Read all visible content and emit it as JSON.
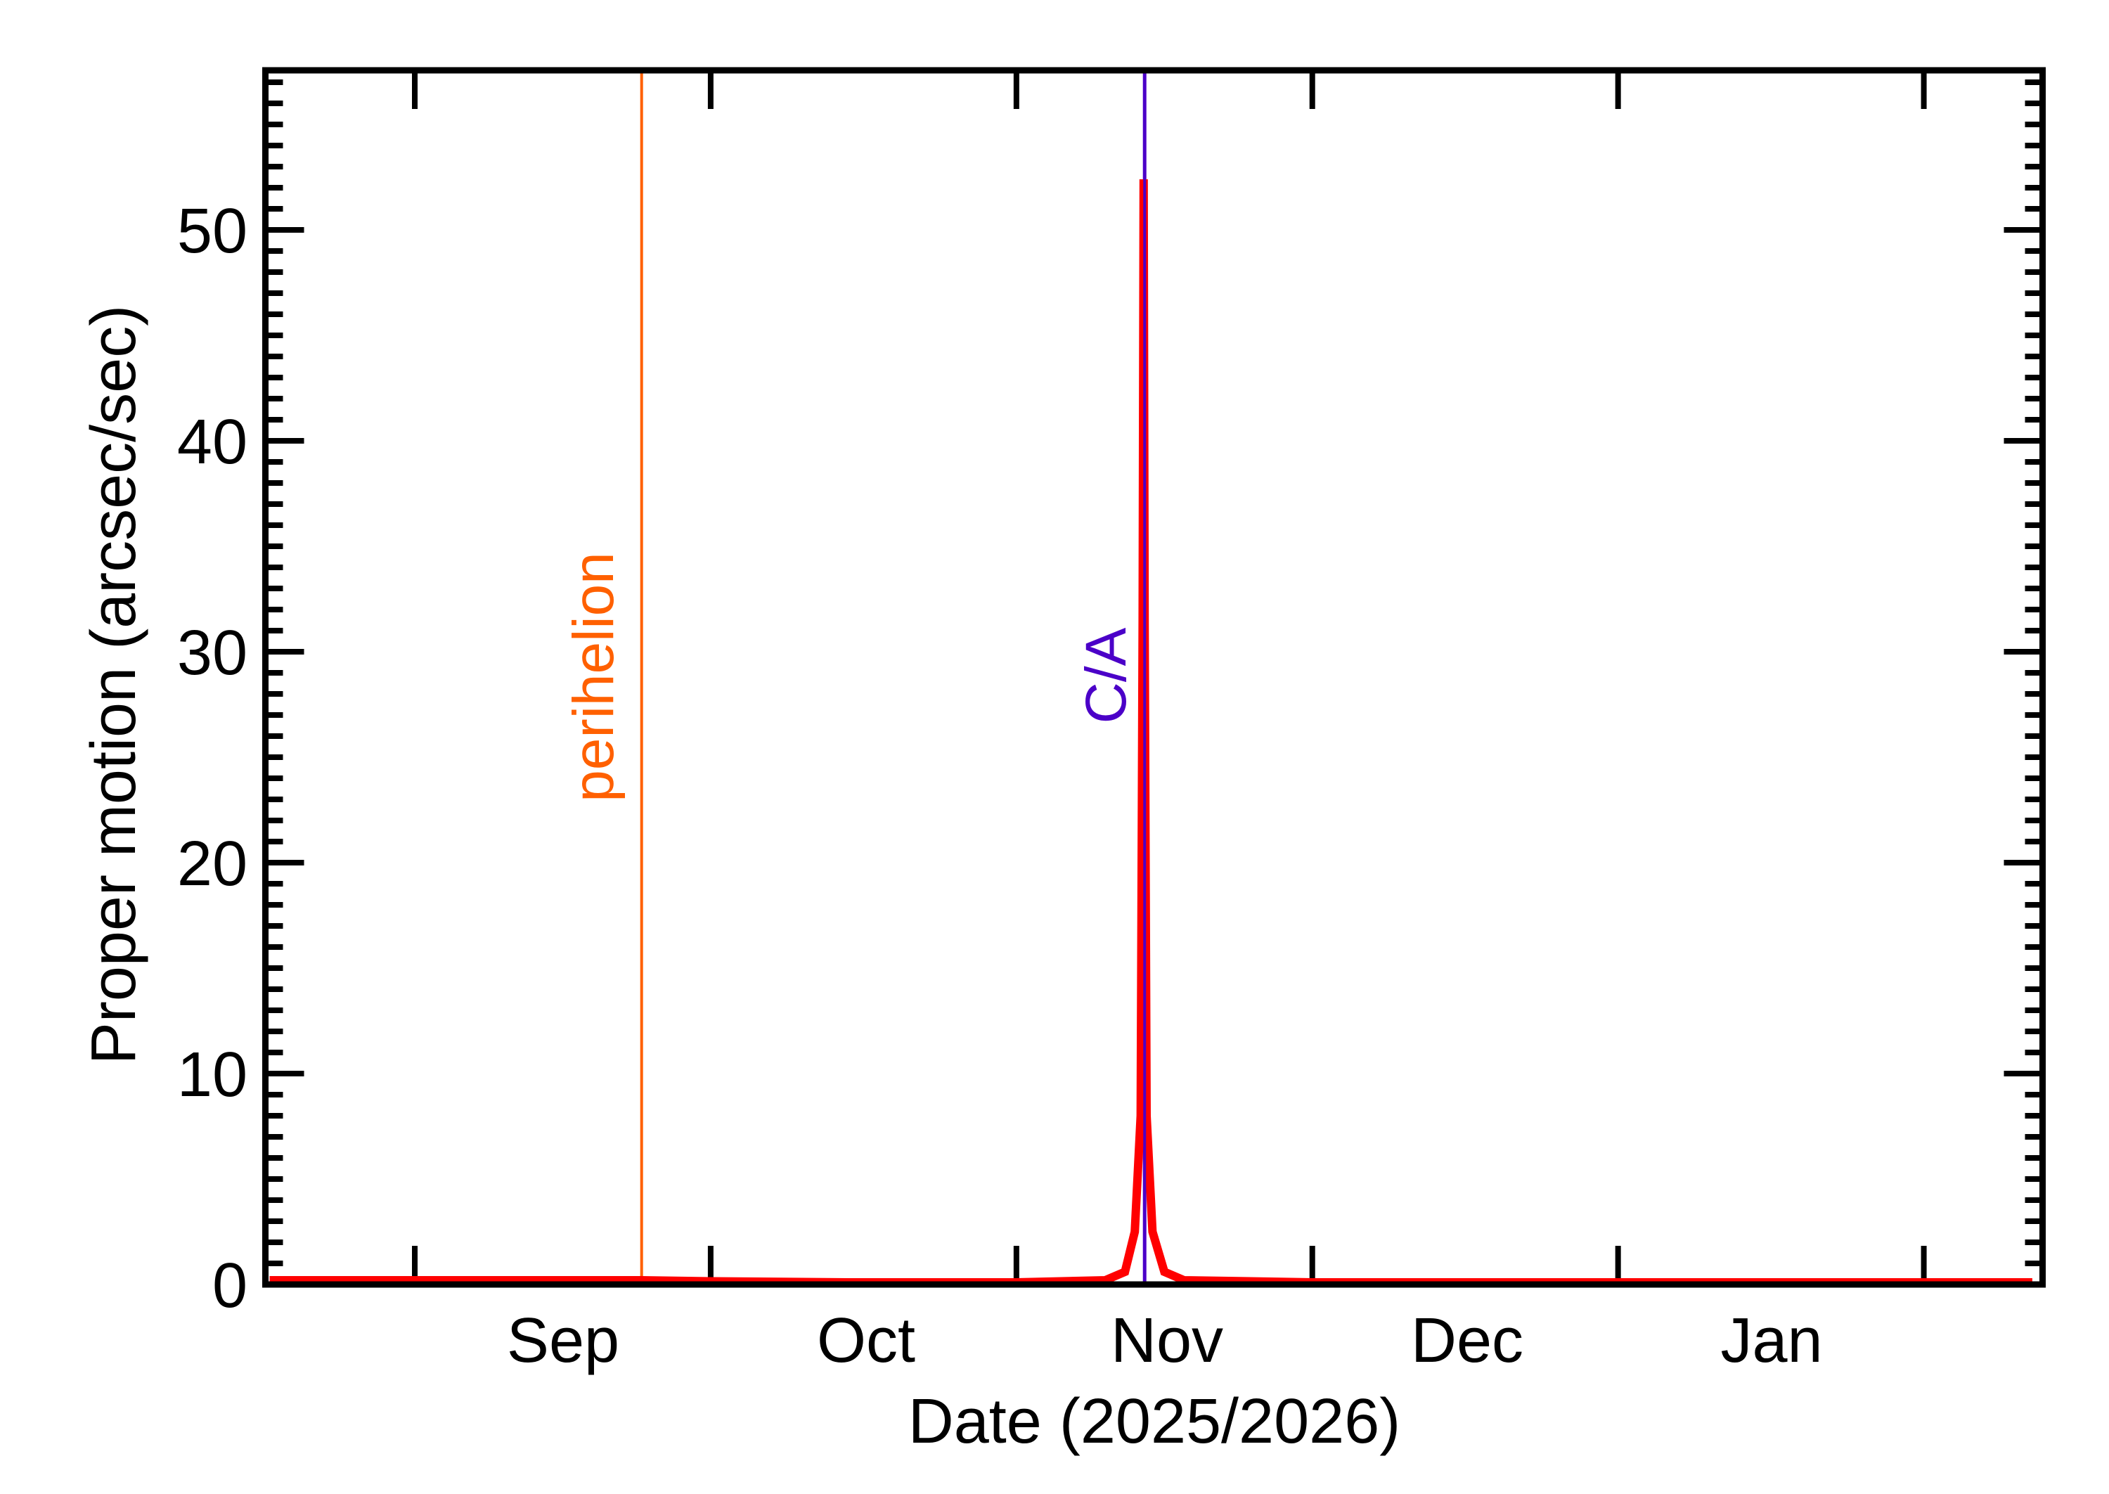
{
  "chart_data": {
    "type": "line",
    "title": "",
    "xlabel": "Date (2025/2026)",
    "ylabel": "Proper motion (arcsec/sec)",
    "x_tick_labels": [
      "Sep",
      "Oct",
      "Nov",
      "Dec",
      "Jan"
    ],
    "x_month_boundaries": [
      "2025-09-01",
      "2025-10-01",
      "2025-11-01",
      "2025-12-01",
      "2026-01-01",
      "2026-02-01"
    ],
    "xlim": [
      "2025-08-16",
      "2026-02-12"
    ],
    "y_ticks": [
      0,
      10,
      20,
      30,
      40,
      50
    ],
    "y_minor_step": 1,
    "ylim": [
      -0.1,
      57.7
    ],
    "grid": false,
    "legend": null,
    "series": [
      {
        "name": "Proper motion",
        "color": "#FF0000",
        "points": [
          {
            "date": "2025-08-16",
            "value": 0.2
          },
          {
            "date": "2025-09-01",
            "value": 0.2
          },
          {
            "date": "2025-09-24",
            "value": 0.2
          },
          {
            "date": "2025-10-01",
            "value": 0.15
          },
          {
            "date": "2025-10-15",
            "value": 0.1
          },
          {
            "date": "2025-11-01",
            "value": 0.1
          },
          {
            "date": "2025-11-10",
            "value": 0.2
          },
          {
            "date": "2025-11-12",
            "value": 0.6
          },
          {
            "date": "2025-11-13",
            "value": 2.5
          },
          {
            "date": "2025-11-13.6",
            "value": 8.0
          },
          {
            "date": "2025-11-13.8",
            "value": 31.4
          },
          {
            "date": "2025-11-13.9",
            "value": 52.4
          },
          {
            "date": "2025-11-14.0",
            "value": 31.4
          },
          {
            "date": "2025-11-14.2",
            "value": 8.0
          },
          {
            "date": "2025-11-14.8",
            "value": 2.5
          },
          {
            "date": "2025-11-16",
            "value": 0.6
          },
          {
            "date": "2025-11-18",
            "value": 0.2
          },
          {
            "date": "2025-12-01",
            "value": 0.1
          },
          {
            "date": "2026-01-01",
            "value": 0.1
          },
          {
            "date": "2026-02-12",
            "value": 0.1
          }
        ]
      }
    ],
    "annotations": [
      {
        "label": "perihelion",
        "date": "2025-09-24",
        "color": "#FF6000",
        "type": "vertical-line"
      },
      {
        "label": "C/A",
        "date": "2025-11-14",
        "color": "#4B00C8",
        "type": "vertical-line",
        "peak_value": 52.4
      }
    ]
  },
  "labels": {
    "xlabel": "Date (2025/2026)",
    "ylabel": "Proper motion (arcsec/sec)",
    "perihelion": "perihelion",
    "ca": "C/A",
    "yticks": [
      "0",
      "10",
      "20",
      "30",
      "40",
      "50"
    ],
    "months": [
      "Sep",
      "Oct",
      "Nov",
      "Dec",
      "Jan"
    ]
  },
  "colors": {
    "axis": "#000000",
    "curve": "#FF0000",
    "perihelion": "#FF6000",
    "ca": "#4B00C8"
  }
}
